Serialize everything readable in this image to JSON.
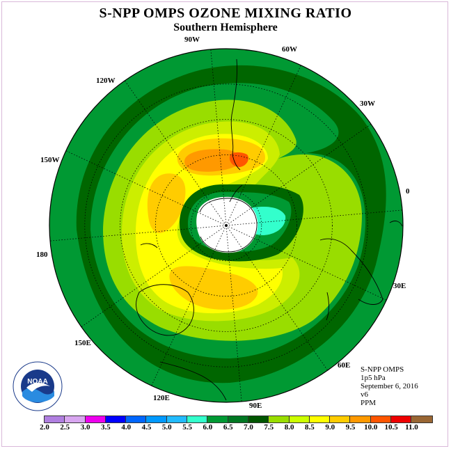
{
  "header": {
    "title": "S-NPP OMPS OZONE MIXING RATIO",
    "subtitle": "Southern Hemisphere"
  },
  "map": {
    "projection": "south-polar-stereographic",
    "longitude_labels": [
      "90W",
      "60W",
      "30W",
      "0",
      "30E",
      "60E",
      "90E",
      "120E",
      "150E",
      "180",
      "150W",
      "120W"
    ],
    "colors": {
      "background": "#009933",
      "ring_dark": "#006600",
      "ring_mid": "#33cc00",
      "ring_light": "#99dd00",
      "yellow": "#ffff00",
      "gold": "#ffcc00",
      "orange": "#ff9900",
      "red_orange": "#ff5500",
      "cyan": "#33ffcc",
      "missing": "#ffffff"
    }
  },
  "info": {
    "lines": [
      "S-NPP OMPS",
      "1p5 hPa",
      "September 6, 2016",
      "v6",
      "PPM"
    ]
  },
  "logo": {
    "label": "NOAA",
    "icon": "noaa-logo-icon"
  },
  "colorbar": {
    "levels": [
      "2.0",
      "2.5",
      "3.0",
      "3.5",
      "4.0",
      "4.5",
      "5.0",
      "5.5",
      "6.0",
      "6.5",
      "7.0",
      "7.5",
      "8.0",
      "8.5",
      "9.0",
      "9.5",
      "10.0",
      "10.5",
      "11.0"
    ],
    "colors": [
      "#b07fe0",
      "#d8a6f0",
      "#ee00ee",
      "#0000ff",
      "#0066ff",
      "#0099ff",
      "#22bbff",
      "#33ffcc",
      "#009933",
      "#007722",
      "#005500",
      "#99dd00",
      "#ccff00",
      "#ffff00",
      "#ffcc00",
      "#ff9900",
      "#ff5500",
      "#ee0000",
      "#996633"
    ]
  }
}
